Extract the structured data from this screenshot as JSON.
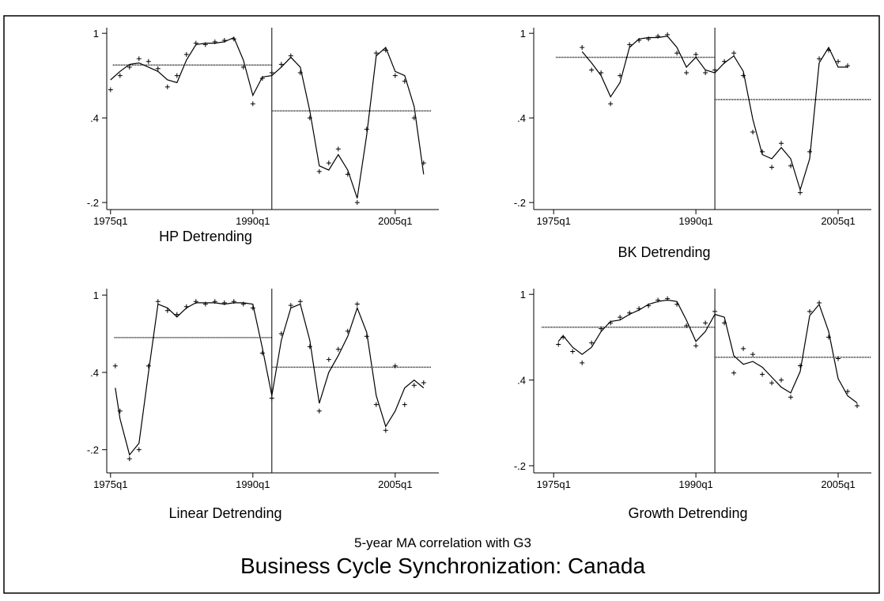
{
  "title": "Business Cycle Synchronization: Canada",
  "subtitle": "5-year MA correlation with G3",
  "chart_data": [
    {
      "type": "line",
      "title": "HP Detrending",
      "xlim": [
        1974.6,
        2009.6
      ],
      "ylim": [
        -0.25,
        1.04
      ],
      "xticks": [
        {
          "value": 1975,
          "label": "1975q1"
        },
        {
          "value": 1990,
          "label": "1990q1"
        },
        {
          "value": 2005,
          "label": "2005q1"
        }
      ],
      "yticks": [
        {
          "value": -0.2,
          "label": "-.2"
        },
        {
          "value": 0.4,
          "label": ".4"
        },
        1
      ],
      "x": [
        1975,
        1976,
        1977,
        1978,
        1979,
        1980,
        1981,
        1982,
        1983,
        1984,
        1985,
        1986,
        1987,
        1988,
        1989,
        1990,
        1991,
        1992,
        1993,
        1994,
        1995,
        1996,
        1997,
        1998,
        1999,
        2000,
        2001,
        2002,
        2003,
        2004,
        2005,
        2006,
        2007,
        2008
      ],
      "series": [
        {
          "values": [
            0.67,
            0.73,
            0.78,
            0.79,
            0.76,
            0.73,
            0.67,
            0.65,
            0.81,
            0.92,
            0.93,
            0.93,
            0.94,
            0.97,
            0.81,
            0.56,
            0.69,
            0.7,
            0.76,
            0.83,
            0.76,
            0.45,
            0.06,
            0.03,
            0.14,
            0.03,
            -0.17,
            0.28,
            0.84,
            0.9,
            0.73,
            0.7,
            0.48,
            0.0
          ]
        },
        {
          "values": [
            0.6,
            0.7,
            0.76,
            0.82,
            0.8,
            0.75,
            0.62,
            0.7,
            0.85,
            0.93,
            0.92,
            0.94,
            0.95,
            0.96,
            0.76,
            0.5,
            0.68,
            0.72,
            0.78,
            0.84,
            0.72,
            0.4,
            0.02,
            0.08,
            0.18,
            0.0,
            -0.2,
            0.32,
            0.86,
            0.88,
            0.7,
            0.66,
            0.4,
            0.08
          ],
          "marker": "+"
        }
      ],
      "vline": 1992,
      "means": [
        {
          "x": [
            1975.25,
            1992
          ],
          "value": 0.775
        },
        {
          "x": [
            1992,
            2008.75
          ],
          "value": 0.45
        }
      ],
      "color": "#000000"
    },
    {
      "type": "line",
      "title": "BK Detrending",
      "xlim": [
        1972.9,
        2008.5
      ],
      "ylim": [
        -0.25,
        1.04
      ],
      "xticks": [
        {
          "value": 1975,
          "label": "1975q1"
        },
        {
          "value": 1990,
          "label": "1990q1"
        },
        {
          "value": 2005,
          "label": "2005q1"
        }
      ],
      "yticks": [
        {
          "value": -0.2,
          "label": "-.2"
        },
        {
          "value": 0.4,
          "label": ".4"
        },
        1
      ],
      "x": [
        1978,
        1979,
        1980,
        1981,
        1982,
        1983,
        1984,
        1985,
        1986,
        1987,
        1988,
        1989,
        1990,
        1991,
        1992,
        1993,
        1994,
        1995,
        1996,
        1997,
        1998,
        1999,
        2000,
        2001,
        2002,
        2003,
        2004,
        2005,
        2006
      ],
      "series": [
        {
          "values": [
            0.87,
            0.79,
            0.7,
            0.55,
            0.65,
            0.9,
            0.96,
            0.97,
            0.97,
            0.98,
            0.9,
            0.76,
            0.83,
            0.74,
            0.72,
            0.79,
            0.84,
            0.73,
            0.39,
            0.14,
            0.11,
            0.19,
            0.11,
            -0.11,
            0.11,
            0.79,
            0.9,
            0.76,
            0.76
          ]
        },
        {
          "values": [
            0.9,
            0.74,
            0.72,
            0.5,
            0.7,
            0.92,
            0.95,
            0.96,
            0.98,
            0.99,
            0.86,
            0.72,
            0.85,
            0.72,
            0.74,
            0.8,
            0.86,
            0.7,
            0.3,
            0.16,
            0.05,
            0.22,
            0.06,
            -0.13,
            0.16,
            0.82,
            0.88,
            0.8,
            0.77
          ],
          "marker": "+"
        }
      ],
      "vline": 1992,
      "means": [
        {
          "x": [
            1975.25,
            1992
          ],
          "value": 0.83
        },
        {
          "x": [
            1992,
            2008.5
          ],
          "value": 0.53
        }
      ],
      "color": "#000000"
    },
    {
      "type": "line",
      "title": "Linear Detrending",
      "xlim": [
        1974.6,
        2009.6
      ],
      "ylim": [
        -0.38,
        1.05
      ],
      "xticks": [
        {
          "value": 1975,
          "label": "1975q1"
        },
        {
          "value": 1990,
          "label": "1990q1"
        },
        {
          "value": 2005,
          "label": "2005q1"
        }
      ],
      "yticks": [
        {
          "value": -0.2,
          "label": "-.2"
        },
        {
          "value": 0.4,
          "label": ".4"
        },
        1
      ],
      "x": [
        1975.5,
        1976,
        1977,
        1978,
        1979,
        1980,
        1981,
        1982,
        1983,
        1984,
        1985,
        1986,
        1987,
        1988,
        1989,
        1990,
        1991,
        1992,
        1993,
        1994,
        1995,
        1996,
        1997,
        1998,
        1999,
        2000,
        2001,
        2002,
        2003,
        2004,
        2005,
        2006,
        2007,
        2008
      ],
      "series": [
        {
          "values": [
            0.28,
            0.04,
            -0.24,
            -0.15,
            0.4,
            0.93,
            0.9,
            0.83,
            0.9,
            0.94,
            0.94,
            0.94,
            0.93,
            0.94,
            0.94,
            0.93,
            0.59,
            0.22,
            0.65,
            0.9,
            0.93,
            0.65,
            0.16,
            0.4,
            0.53,
            0.68,
            0.9,
            0.71,
            0.22,
            -0.02,
            0.1,
            0.28,
            0.34,
            0.28
          ]
        },
        {
          "values": [
            0.45,
            0.1,
            -0.27,
            -0.2,
            0.45,
            0.95,
            0.88,
            0.85,
            0.91,
            0.95,
            0.93,
            0.95,
            0.94,
            0.95,
            0.93,
            0.9,
            0.55,
            0.2,
            0.7,
            0.92,
            0.95,
            0.6,
            0.1,
            0.5,
            0.58,
            0.72,
            0.93,
            0.68,
            0.15,
            -0.05,
            0.45,
            0.15,
            0.3,
            0.32
          ],
          "marker": "+"
        }
      ],
      "vline": 1992,
      "means": [
        {
          "x": [
            1975.4,
            1992
          ],
          "value": 0.67
        },
        {
          "x": [
            1992,
            2008.75
          ],
          "value": 0.44
        }
      ],
      "color": "#000000"
    },
    {
      "type": "line",
      "title": "Growth Detrending",
      "xlim": [
        1972.9,
        2008.5
      ],
      "ylim": [
        -0.25,
        1.04
      ],
      "xticks": [
        {
          "value": 1975,
          "label": "1975q1"
        },
        {
          "value": 1990,
          "label": "1990q1"
        },
        {
          "value": 2005,
          "label": "2005q1"
        }
      ],
      "yticks": [
        {
          "value": -0.2,
          "label": "-.2"
        },
        {
          "value": 0.4,
          "label": ".4"
        },
        1
      ],
      "x": [
        1975.5,
        1976,
        1977,
        1978,
        1979,
        1980,
        1981,
        1982,
        1983,
        1984,
        1985,
        1986,
        1987,
        1988,
        1989,
        1990,
        1991,
        1992,
        1993,
        1994,
        1995,
        1996,
        1997,
        1998,
        1999,
        2000,
        2001,
        2002,
        2003,
        2004,
        2005,
        2006,
        2007
      ],
      "series": [
        {
          "values": [
            0.67,
            0.71,
            0.63,
            0.58,
            0.63,
            0.74,
            0.81,
            0.82,
            0.86,
            0.89,
            0.93,
            0.95,
            0.96,
            0.95,
            0.82,
            0.67,
            0.74,
            0.86,
            0.84,
            0.57,
            0.51,
            0.53,
            0.49,
            0.42,
            0.35,
            0.31,
            0.46,
            0.85,
            0.93,
            0.74,
            0.41,
            0.29,
            0.24
          ]
        },
        {
          "values": [
            0.65,
            0.7,
            0.6,
            0.52,
            0.66,
            0.76,
            0.8,
            0.84,
            0.87,
            0.9,
            0.92,
            0.96,
            0.97,
            0.93,
            0.78,
            0.64,
            0.8,
            0.88,
            0.8,
            0.45,
            0.62,
            0.58,
            0.44,
            0.38,
            0.4,
            0.28,
            0.5,
            0.88,
            0.94,
            0.7,
            0.55,
            0.32,
            0.22
          ],
          "marker": "+"
        }
      ],
      "vline": 1992,
      "means": [
        {
          "x": [
            1973.75,
            1992
          ],
          "value": 0.77
        },
        {
          "x": [
            1992,
            2008.5
          ],
          "value": 0.56
        }
      ],
      "color": "#000000"
    }
  ]
}
